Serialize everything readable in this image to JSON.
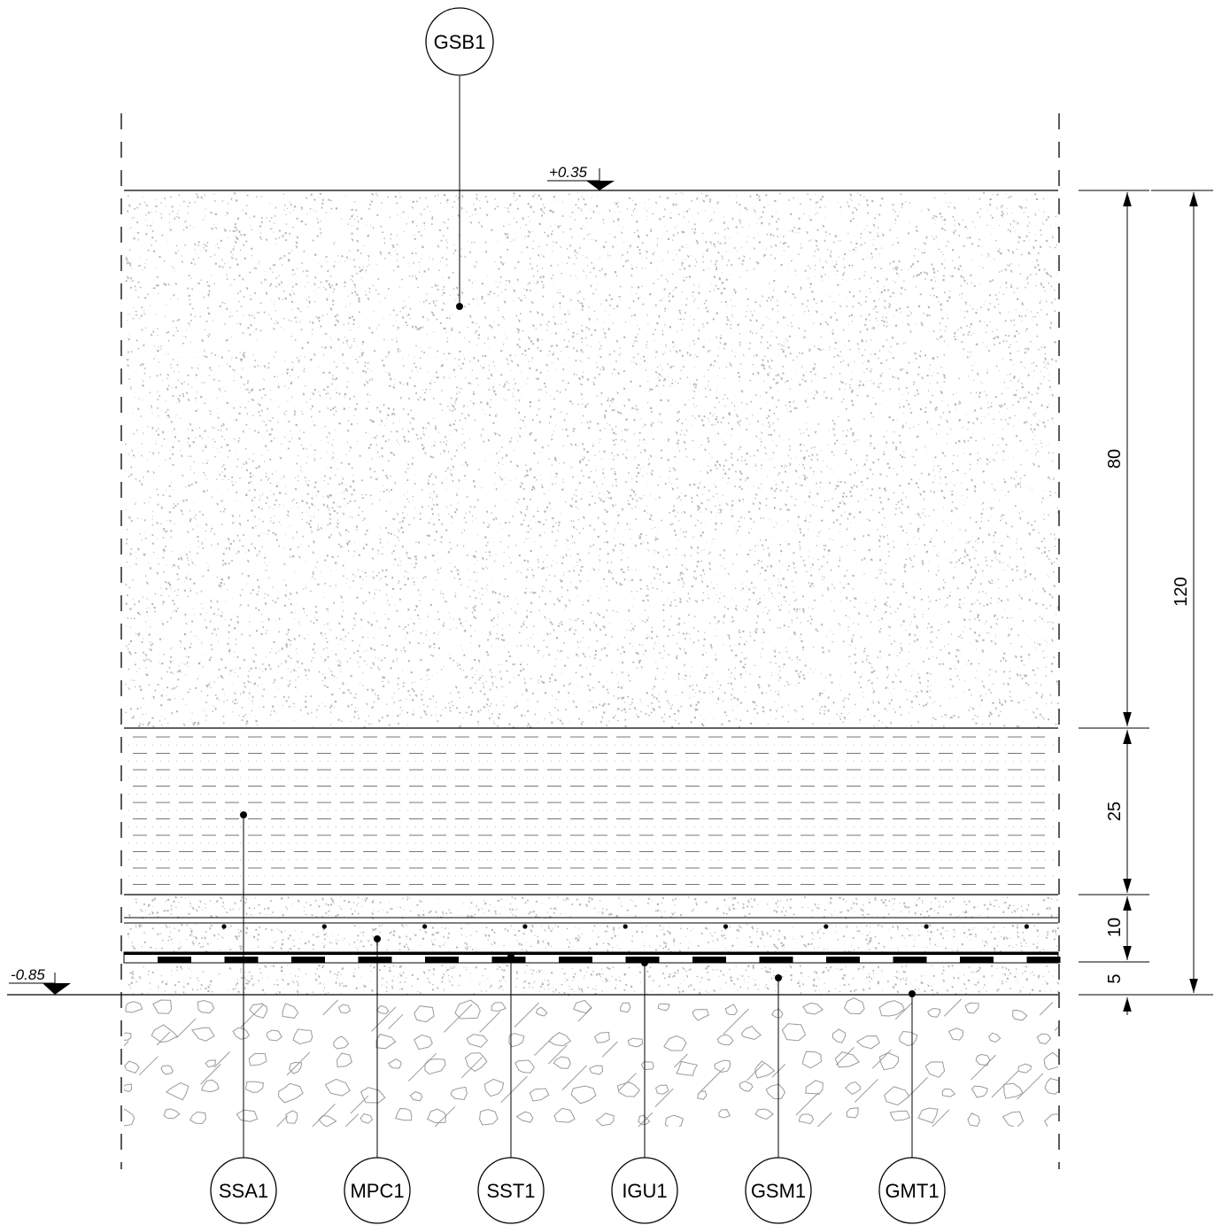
{
  "tags": {
    "top": "GSB1",
    "bottom": [
      "SSA1",
      "MPC1",
      "SST1",
      "IGU1",
      "GSM1",
      "GMT1"
    ]
  },
  "levels": {
    "top": "+0.35",
    "bottom": "-0.85"
  },
  "dimensions": {
    "inner": [
      "80",
      "25",
      "10",
      "5"
    ],
    "total": "120"
  },
  "colors": {
    "line": "#000000",
    "hatch": "#9a9a9a",
    "speckle": "#b3b3b3"
  }
}
